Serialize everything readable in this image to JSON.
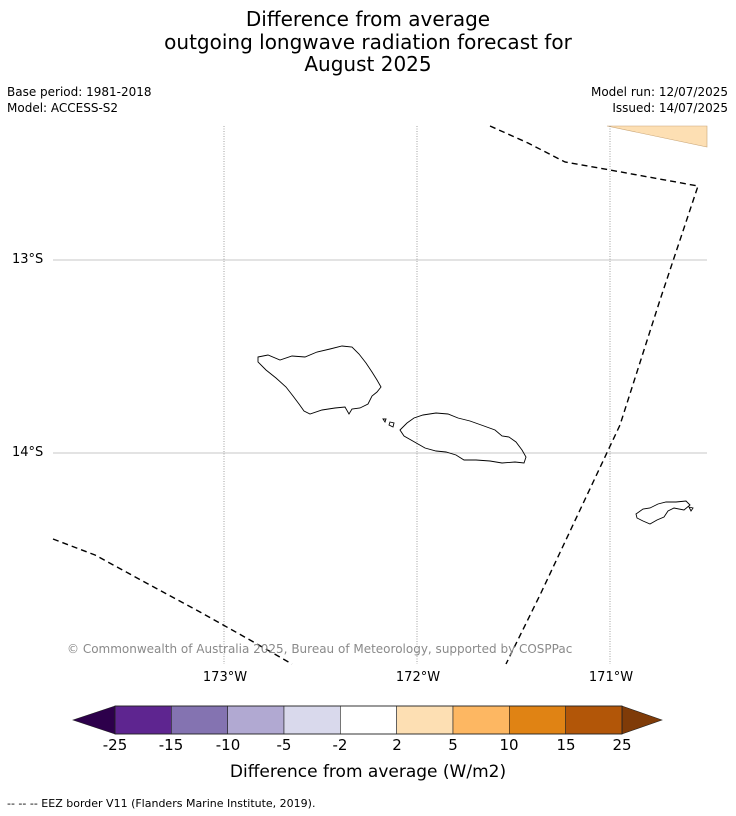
{
  "title": {
    "line1": "Difference from average",
    "line2": "outgoing longwave radiation forecast for",
    "line3": "August 2025"
  },
  "meta": {
    "base_period": "Base period: 1981-2018",
    "model": "Model: ACCESS-S2",
    "model_run": "Model run: 12/07/2025",
    "issued": "Issued: 14/07/2025"
  },
  "map": {
    "latitude_labels": [
      "13°S",
      "14°S"
    ],
    "longitude_labels": [
      "173°W",
      "172°W",
      "171°W"
    ],
    "copyright": "© Commonwealth of Australia 2025, Bureau of Meteorology, supported by COSPPac",
    "gridline_style": {
      "latitude": "solid",
      "longitude": "dotted"
    },
    "shaded_region": {
      "corner": "top-right",
      "class": "2 to 5",
      "color": "#fddfb3"
    }
  },
  "colorbar": {
    "label": "Difference from average (W/m2)",
    "ticks": [
      "-25",
      "-15",
      "-10",
      "-5",
      "-2",
      "2",
      "5",
      "10",
      "15",
      "25"
    ],
    "under_color": "#2d004b",
    "over_color": "#7f3b08",
    "colors": [
      "#5e2590",
      "#8473b1",
      "#b1a9d2",
      "#d9d9ec",
      "#ffffff",
      "#fddfb3",
      "#fdb762",
      "#e08314",
      "#b25608"
    ]
  },
  "legend": {
    "eez_note": "--  --  -- EEZ border V11 (Flanders Marine Institute, 2019)."
  }
}
